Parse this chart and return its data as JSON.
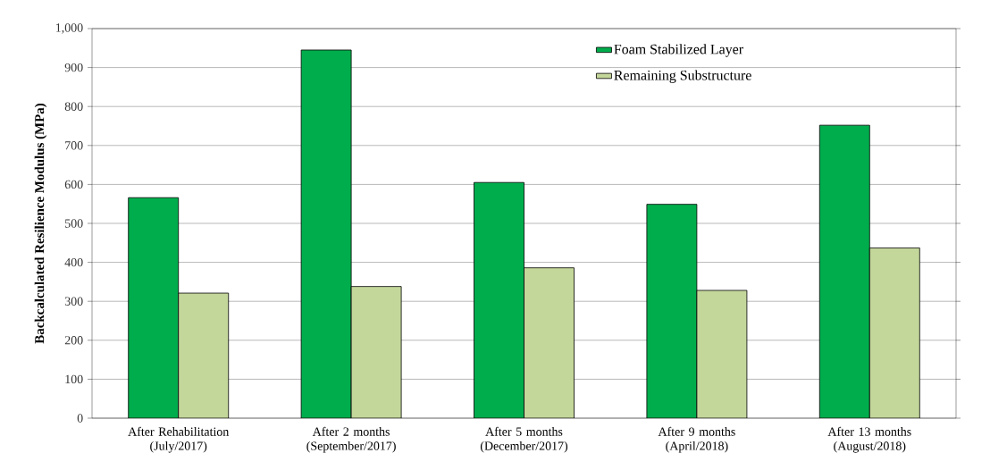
{
  "chart_data": {
    "type": "bar",
    "ylabel": "Backcalculated Resilience Modulus (MPa)",
    "categories": [
      "After Rehabilitation (July/2017)",
      "After 2 months (September/2017)",
      "After 5 months (December/2017)",
      "After 9 months (April/2018)",
      "After 13 months (August/2018)"
    ],
    "series": [
      {
        "name": "Foam Stabilized Layer",
        "color": "#00ad4c",
        "values": [
          566,
          945,
          605,
          549,
          752
        ]
      },
      {
        "name": "Remaining Substructure",
        "color": "#c4d79b",
        "values": [
          321,
          338,
          386,
          328,
          437
        ]
      }
    ],
    "ylim": [
      0,
      1000
    ],
    "yticks": [
      0,
      100,
      200,
      300,
      400,
      500,
      600,
      700,
      800,
      900,
      {
        "value": 1000,
        "label": "1,000"
      }
    ],
    "grid": "y",
    "legend": "top right"
  }
}
